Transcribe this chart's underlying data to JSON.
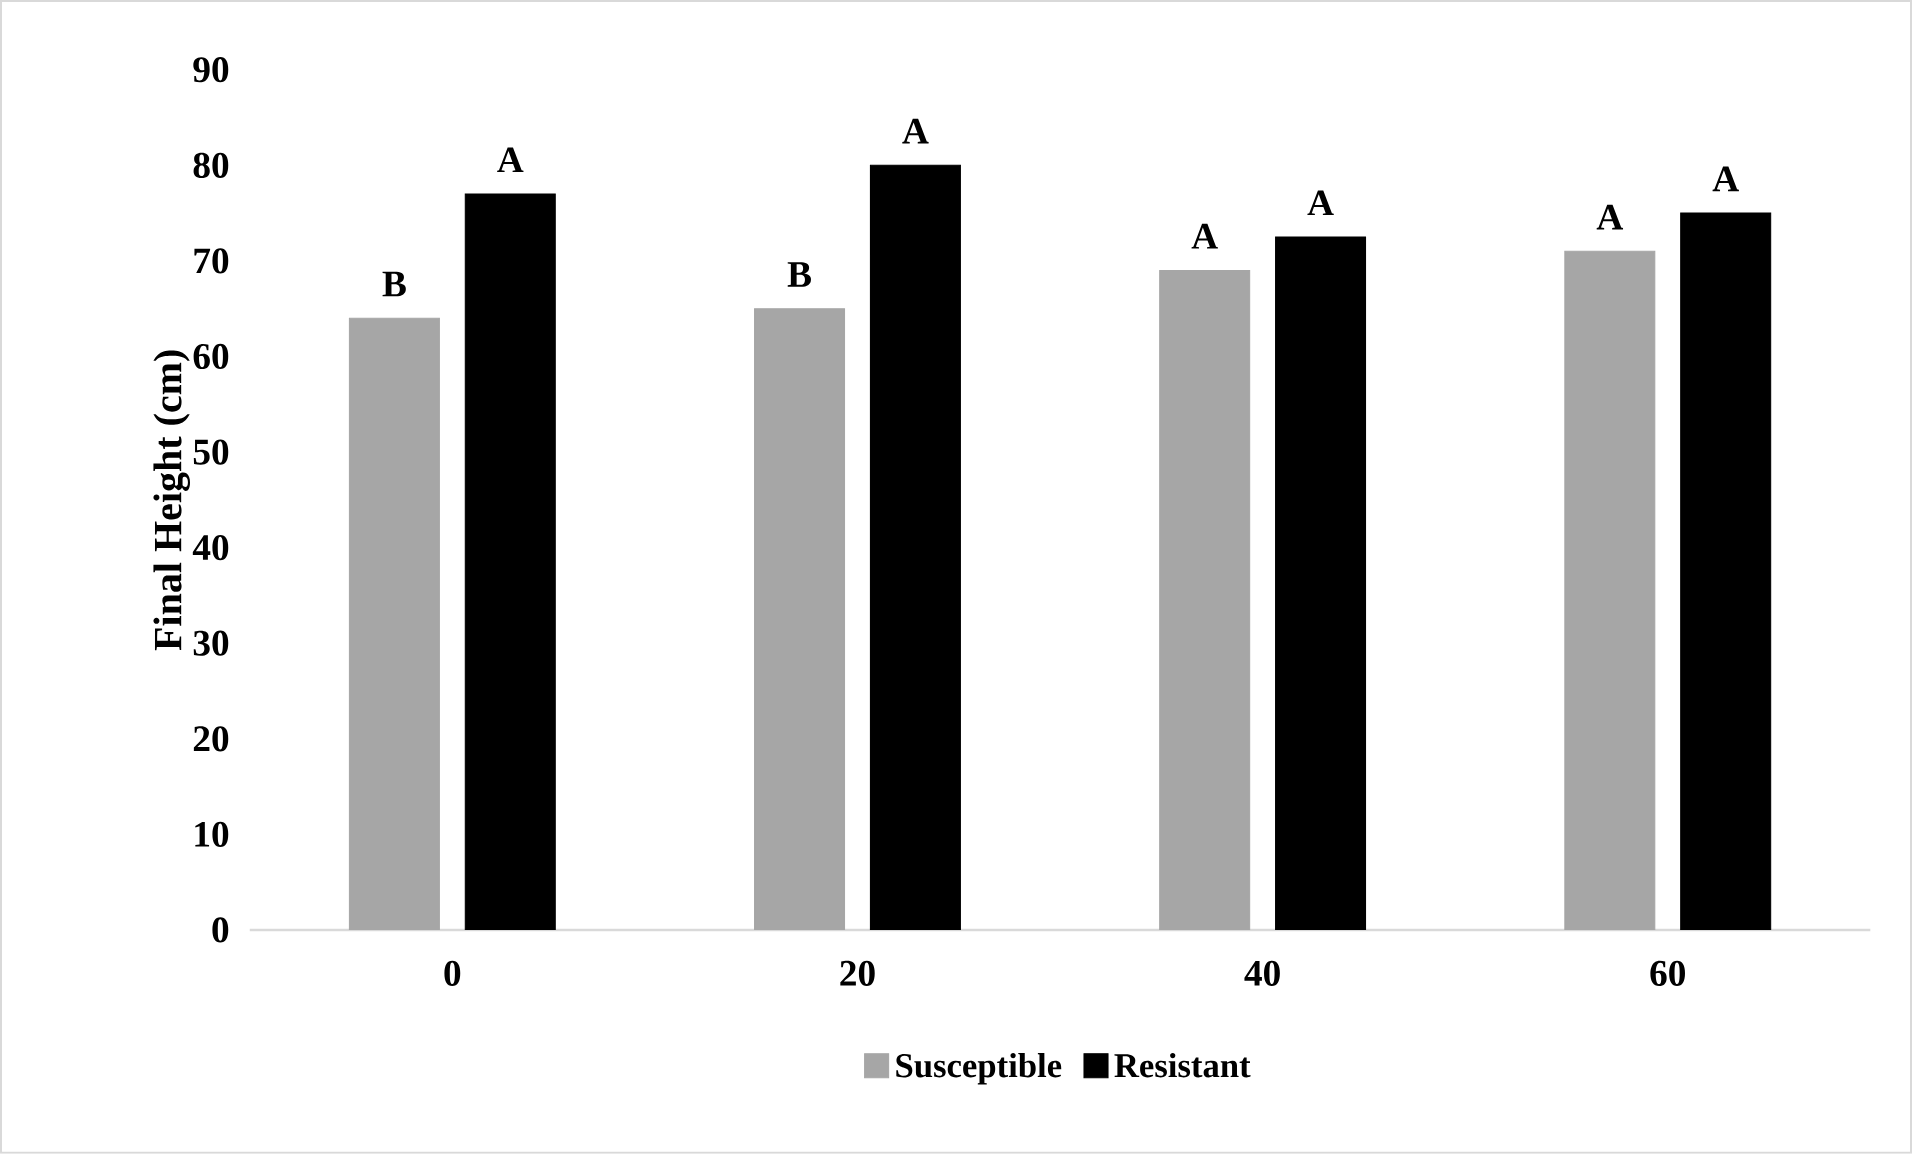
{
  "chart_data": {
    "type": "bar",
    "ylabel": "Final Height (cm)",
    "categories": [
      "0",
      "20",
      "40",
      "60"
    ],
    "series": [
      {
        "name": "Susceptible",
        "color": "#a6a6a6",
        "values": [
          64,
          65,
          69,
          71
        ],
        "value_labels": [
          "B",
          "B",
          "A",
          "A"
        ]
      },
      {
        "name": "Resistant",
        "color": "#000000",
        "values": [
          77,
          80,
          72.5,
          75
        ],
        "value_labels": [
          "A",
          "A",
          "A",
          "A"
        ]
      }
    ],
    "ylim": [
      0,
      90
    ],
    "yticks": [
      0,
      10,
      20,
      30,
      40,
      50,
      60,
      70,
      80,
      90
    ],
    "legend": "bottom"
  }
}
